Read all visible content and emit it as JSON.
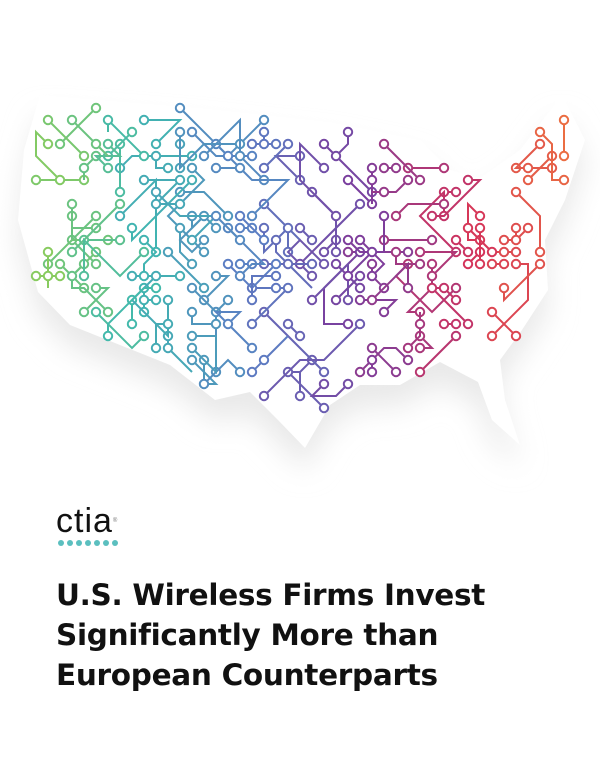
{
  "cover": {
    "logo": {
      "text": "ctia",
      "dot_color": "#5bbfbf"
    },
    "title_lines": [
      "U.S. Wireless Firms Invest",
      "Significantly More than",
      "European Counterparts"
    ],
    "map": {
      "subject": "circuit-board map of the United States",
      "gradient_colors": [
        "#9bd04a",
        "#3fb8b0",
        "#5a7fc4",
        "#7a3e9e",
        "#d4325a",
        "#f07a3c"
      ]
    }
  }
}
